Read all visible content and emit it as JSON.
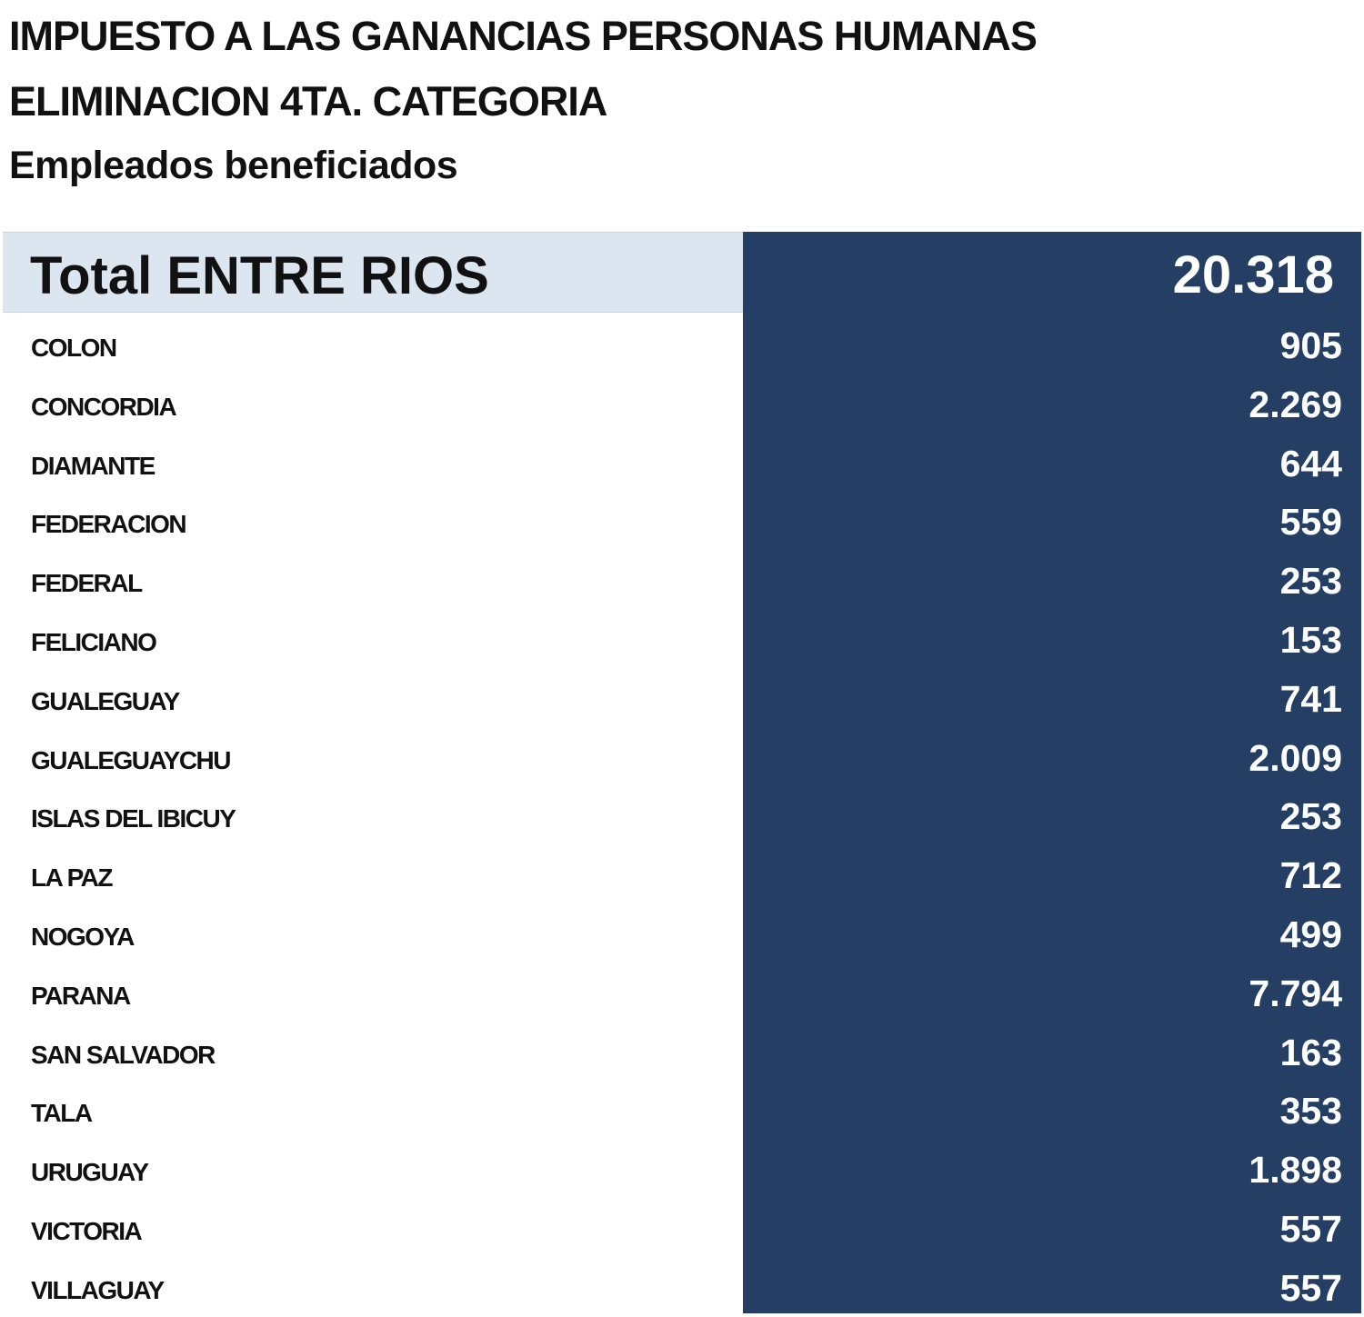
{
  "header": {
    "line1": "IMPUESTO A LAS GANANCIAS PERSONAS HUMANAS",
    "line2": "ELIMINACION 4TA. CATEGORIA",
    "line3": "Empleados beneficiados"
  },
  "table": {
    "total": {
      "label": "Total ENTRE RIOS",
      "value": "20.318"
    },
    "rows": [
      {
        "label": "COLON",
        "value": "905"
      },
      {
        "label": "CONCORDIA",
        "value": "2.269"
      },
      {
        "label": "DIAMANTE",
        "value": "644"
      },
      {
        "label": "FEDERACION",
        "value": "559"
      },
      {
        "label": "FEDERAL",
        "value": "253"
      },
      {
        "label": "FELICIANO",
        "value": "153"
      },
      {
        "label": "GUALEGUAY",
        "value": "741"
      },
      {
        "label": "GUALEGUAYCHU",
        "value": "2.009"
      },
      {
        "label": "ISLAS DEL IBICUY",
        "value": "253"
      },
      {
        "label": "LA PAZ",
        "value": "712"
      },
      {
        "label": "NOGOYA",
        "value": "499"
      },
      {
        "label": "PARANA",
        "value": "7.794"
      },
      {
        "label": "SAN SALVADOR",
        "value": "163"
      },
      {
        "label": "TALA",
        "value": "353"
      },
      {
        "label": "URUGUAY",
        "value": "1.898"
      },
      {
        "label": "VICTORIA",
        "value": "557"
      },
      {
        "label": "VILLAGUAY",
        "value": "557"
      }
    ]
  },
  "colors": {
    "value_column_bg": "#243f63",
    "total_label_bg": "#dce6f1",
    "value_text": "#ffffff",
    "label_text": "#111111"
  }
}
